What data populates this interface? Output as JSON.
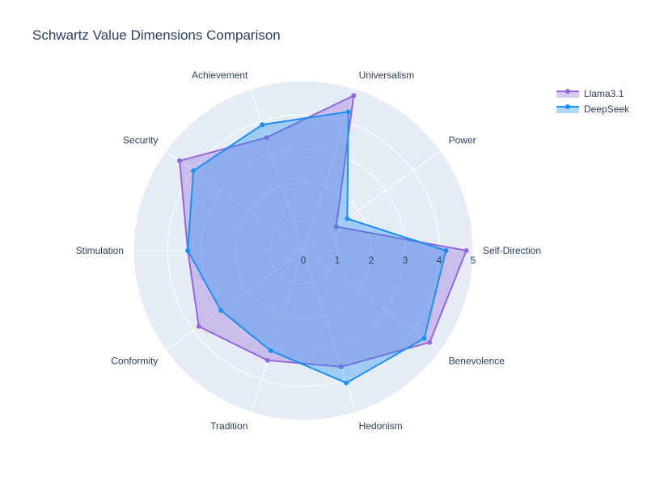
{
  "chart_data": {
    "type": "radar",
    "title": "Schwartz Value Dimensions Comparison",
    "categories": [
      "Self-Direction",
      "Power",
      "Universalism",
      "Achievement",
      "Security",
      "Stimulation",
      "Conformity",
      "Tradition",
      "Hedonism",
      "Benevolence"
    ],
    "series": [
      {
        "name": "Llama3.1",
        "values": [
          4.8,
          1.2,
          4.8,
          3.5,
          4.5,
          3.4,
          3.8,
          3.4,
          3.6,
          4.6
        ],
        "color": "#9467d8",
        "fill": "rgba(148,103,216,0.35)"
      },
      {
        "name": "DeepSeek",
        "values": [
          4.2,
          1.6,
          4.3,
          3.9,
          4.0,
          3.4,
          3.0,
          3.1,
          4.1,
          4.4
        ],
        "color": "#1f8ef1",
        "fill": "rgba(31,142,241,0.35)"
      }
    ],
    "radial_range": [
      0,
      5
    ],
    "radial_ticks": [
      0,
      1,
      2,
      3,
      4,
      5
    ],
    "legend_position": "top-right",
    "grid": true
  }
}
